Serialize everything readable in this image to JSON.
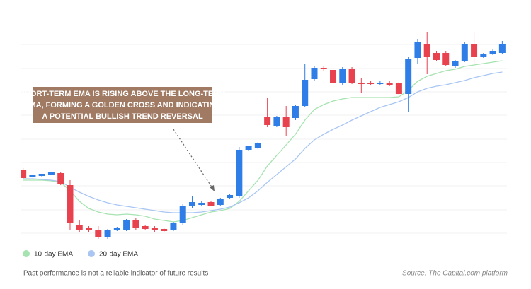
{
  "chart_data": {
    "type": "candlestick",
    "annotation": [
      "SHORT-TERM EMA IS RISING ABOVE THE LONG-TERM",
      "EMA, FORMING A GOLDEN CROSS AND INDICATING",
      "A POTENTIAL BULLISH TREND REVERSAL"
    ],
    "open": [
      100,
      90,
      91,
      93,
      95,
      78,
      22,
      18,
      14,
      4,
      14,
      15,
      28,
      20,
      18,
      16,
      14,
      24,
      48,
      50,
      54,
      50,
      60,
      62,
      128,
      130,
      174,
      162,
      174,
      173,
      190,
      228,
      244,
      241,
      222,
      243,
      223,
      223,
      221,
      223,
      222,
      207,
      258,
      278,
      265,
      265,
      246,
      254,
      278,
      260,
      263,
      265
    ],
    "high": [
      102,
      93,
      94,
      96,
      96,
      85,
      28,
      20,
      20,
      16,
      19,
      30,
      32,
      22,
      20,
      17,
      26,
      52,
      62,
      56,
      56,
      60,
      66,
      132,
      134,
      139,
      202,
      176,
      190,
      192,
      250,
      246,
      246,
      244,
      245,
      245,
      230,
      225,
      225,
      225,
      224,
      260,
      285,
      295,
      268,
      268,
      255,
      280,
      295,
      265,
      270,
      282
    ],
    "low": [
      86,
      89,
      90,
      92,
      78,
      15,
      12,
      12,
      2,
      2,
      13,
      13,
      14,
      15,
      12,
      12,
      13,
      22,
      46,
      49,
      48,
      49,
      58,
      60,
      127,
      129,
      160,
      160,
      148,
      170,
      188,
      226,
      240,
      220,
      220,
      221,
      208,
      219,
      219,
      218,
      205,
      182,
      250,
      235,
      253,
      246,
      244,
      252,
      250,
      258,
      262,
      263
    ],
    "close": [
      88,
      93,
      94,
      96,
      80,
      25,
      15,
      14,
      4,
      14,
      18,
      28,
      18,
      16,
      14,
      13,
      25,
      48,
      54,
      53,
      49,
      59,
      64,
      128,
      133,
      138,
      163,
      174,
      160,
      190,
      227,
      244,
      242,
      222,
      243,
      223,
      221,
      221,
      223,
      220,
      207,
      257,
      280,
      260,
      255,
      248,
      253,
      278,
      260,
      263,
      268,
      278
    ],
    "bull_color": "#2f7de6",
    "bear_color": "#e8424f",
    "series": [
      {
        "name": "10-day EMA",
        "color": "#a6e3b0",
        "values": [
          85,
          85,
          85,
          84,
          82,
          70,
          55,
          45,
          40,
          37,
          36,
          37,
          36,
          34,
          30,
          28,
          26,
          28,
          32,
          36,
          40,
          42,
          45,
          55,
          70,
          85,
          105,
          120,
          135,
          150,
          170,
          185,
          192,
          197,
          200,
          202,
          202,
          202,
          202,
          202,
          203,
          212,
          225,
          232,
          236,
          240,
          242,
          246,
          248,
          250,
          252,
          254
        ]
      },
      {
        "name": "20-day EMA",
        "color": "#a9c6f3",
        "values": [
          87,
          87,
          86,
          85,
          83,
          75,
          68,
          62,
          57,
          53,
          50,
          48,
          46,
          44,
          42,
          40,
          39,
          39,
          39,
          40,
          42,
          44,
          47,
          53,
          60,
          70,
          82,
          93,
          104,
          115,
          130,
          142,
          150,
          157,
          163,
          170,
          176,
          182,
          188,
          192,
          196,
          202,
          210,
          215,
          218,
          220,
          223,
          226,
          230,
          233,
          236,
          238
        ]
      }
    ],
    "ylim": [
      0,
      300
    ],
    "yticks": [
      10,
      43,
      77,
      110,
      143,
      177,
      210,
      243,
      277
    ],
    "grid": true,
    "footnote": "Past performance is not a reliable indicator of future results",
    "source": "Source: The Capital.com platform"
  }
}
